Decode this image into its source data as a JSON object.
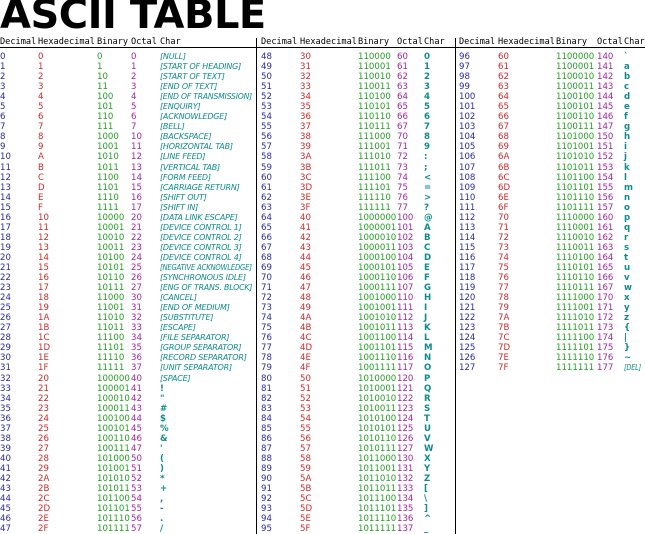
{
  "title": "ASCII TABLE",
  "headers": [
    "Decimal",
    "Hexadecimal",
    "Binary",
    "Octal",
    "Char"
  ],
  "colors": {
    "decimal": "#2b2ba3",
    "hexadecimal": "#cc2a2a",
    "binary": "#24a024",
    "octal": "#a126a1",
    "char": "#0e8c8c"
  },
  "rows": [
    [
      "0",
      "0",
      "0",
      "0",
      "[NULL]"
    ],
    [
      "1",
      "1",
      "1",
      "1",
      "[START OF HEADING]"
    ],
    [
      "2",
      "2",
      "10",
      "2",
      "[START OF TEXT]"
    ],
    [
      "3",
      "3",
      "11",
      "3",
      "[END OF TEXT]"
    ],
    [
      "4",
      "4",
      "100",
      "4",
      "[END OF TRANSMISSION]"
    ],
    [
      "5",
      "5",
      "101",
      "5",
      "[ENQUIRY]"
    ],
    [
      "6",
      "6",
      "110",
      "6",
      "[ACKNOWLEDGE]"
    ],
    [
      "7",
      "7",
      "111",
      "7",
      "[BELL]"
    ],
    [
      "8",
      "8",
      "1000",
      "10",
      "[BACKSPACE]"
    ],
    [
      "9",
      "9",
      "1001",
      "11",
      "[HORIZONTAL TAB]"
    ],
    [
      "10",
      "A",
      "1010",
      "12",
      "[LINE FEED]"
    ],
    [
      "11",
      "B",
      "1011",
      "13",
      "[VERTICAL TAB]"
    ],
    [
      "12",
      "C",
      "1100",
      "14",
      "[FORM FEED]"
    ],
    [
      "13",
      "D",
      "1101",
      "15",
      "[CARRIAGE RETURN]"
    ],
    [
      "14",
      "E",
      "1110",
      "16",
      "[SHIFT OUT]"
    ],
    [
      "15",
      "F",
      "1111",
      "17",
      "[SHIFT IN]"
    ],
    [
      "16",
      "10",
      "10000",
      "20",
      "[DATA LINK ESCAPE]"
    ],
    [
      "17",
      "11",
      "10001",
      "21",
      "[DEVICE CONTROL 1]"
    ],
    [
      "18",
      "12",
      "10010",
      "22",
      "[DEVICE CONTROL 2]"
    ],
    [
      "19",
      "13",
      "10011",
      "23",
      "[DEVICE CONTROL 3]"
    ],
    [
      "20",
      "14",
      "10100",
      "24",
      "[DEVICE CONTROL 4]"
    ],
    [
      "21",
      "15",
      "10101",
      "25",
      "[NEGATIVE ACKNOWLEDGE]"
    ],
    [
      "22",
      "16",
      "10110",
      "26",
      "[SYNCHRONOUS IDLE]"
    ],
    [
      "23",
      "17",
      "10111",
      "27",
      "[ENG OF TRANS. BLOCK]"
    ],
    [
      "24",
      "18",
      "11000",
      "30",
      "[CANCEL]"
    ],
    [
      "25",
      "19",
      "11001",
      "31",
      "[END OF MEDIUM]"
    ],
    [
      "26",
      "1A",
      "11010",
      "32",
      "[SUBSTITUTE]"
    ],
    [
      "27",
      "1B",
      "11011",
      "33",
      "[ESCAPE]"
    ],
    [
      "28",
      "1C",
      "11100",
      "34",
      "[FILE SEPARATOR]"
    ],
    [
      "29",
      "1D",
      "11101",
      "35",
      "[GROUP SEPARATOR]"
    ],
    [
      "30",
      "1E",
      "11110",
      "36",
      "[RECORD SEPARATOR]"
    ],
    [
      "31",
      "1F",
      "11111",
      "37",
      "[UNIT SEPARATOR]"
    ],
    [
      "32",
      "20",
      "100000",
      "40",
      "[SPACE]"
    ],
    [
      "33",
      "21",
      "100001",
      "41",
      "!"
    ],
    [
      "34",
      "22",
      "100010",
      "42",
      "\""
    ],
    [
      "35",
      "23",
      "100011",
      "43",
      "#"
    ],
    [
      "36",
      "24",
      "100100",
      "44",
      "$"
    ],
    [
      "37",
      "25",
      "100101",
      "45",
      "%"
    ],
    [
      "38",
      "26",
      "100110",
      "46",
      "&"
    ],
    [
      "39",
      "27",
      "100111",
      "47",
      "'"
    ],
    [
      "40",
      "28",
      "101000",
      "50",
      "("
    ],
    [
      "41",
      "29",
      "101001",
      "51",
      ")"
    ],
    [
      "42",
      "2A",
      "101010",
      "52",
      "*"
    ],
    [
      "43",
      "2B",
      "101011",
      "53",
      "+"
    ],
    [
      "44",
      "2C",
      "101100",
      "54",
      ","
    ],
    [
      "45",
      "2D",
      "101101",
      "55",
      "-"
    ],
    [
      "46",
      "2E",
      "101110",
      "56",
      "."
    ],
    [
      "47",
      "2F",
      "101111",
      "57",
      "/"
    ],
    [
      "48",
      "30",
      "110000",
      "60",
      "0"
    ],
    [
      "49",
      "31",
      "110001",
      "61",
      "1"
    ],
    [
      "50",
      "32",
      "110010",
      "62",
      "2"
    ],
    [
      "51",
      "33",
      "110011",
      "63",
      "3"
    ],
    [
      "52",
      "34",
      "110100",
      "64",
      "4"
    ],
    [
      "53",
      "35",
      "110101",
      "65",
      "5"
    ],
    [
      "54",
      "36",
      "110110",
      "66",
      "6"
    ],
    [
      "55",
      "37",
      "110111",
      "67",
      "7"
    ],
    [
      "56",
      "38",
      "111000",
      "70",
      "8"
    ],
    [
      "57",
      "39",
      "111001",
      "71",
      "9"
    ],
    [
      "58",
      "3A",
      "111010",
      "72",
      ":"
    ],
    [
      "59",
      "3B",
      "111011",
      "73",
      ";"
    ],
    [
      "60",
      "3C",
      "111100",
      "74",
      "<"
    ],
    [
      "61",
      "3D",
      "111101",
      "75",
      "="
    ],
    [
      "62",
      "3E",
      "111110",
      "76",
      ">"
    ],
    [
      "63",
      "3F",
      "111111",
      "77",
      "?"
    ],
    [
      "64",
      "40",
      "1000000",
      "100",
      "@"
    ],
    [
      "65",
      "41",
      "1000001",
      "101",
      "A"
    ],
    [
      "66",
      "42",
      "1000010",
      "102",
      "B"
    ],
    [
      "67",
      "43",
      "1000011",
      "103",
      "C"
    ],
    [
      "68",
      "44",
      "1000100",
      "104",
      "D"
    ],
    [
      "69",
      "45",
      "1000101",
      "105",
      "E"
    ],
    [
      "70",
      "46",
      "1000110",
      "106",
      "F"
    ],
    [
      "71",
      "47",
      "1000111",
      "107",
      "G"
    ],
    [
      "72",
      "48",
      "1001000",
      "110",
      "H"
    ],
    [
      "73",
      "49",
      "1001001",
      "111",
      "I"
    ],
    [
      "74",
      "4A",
      "1001010",
      "112",
      "J"
    ],
    [
      "75",
      "4B",
      "1001011",
      "113",
      "K"
    ],
    [
      "76",
      "4C",
      "1001100",
      "114",
      "L"
    ],
    [
      "77",
      "4D",
      "1001101",
      "115",
      "M"
    ],
    [
      "78",
      "4E",
      "1001110",
      "116",
      "N"
    ],
    [
      "79",
      "4F",
      "1001111",
      "117",
      "O"
    ],
    [
      "80",
      "50",
      "1010000",
      "120",
      "P"
    ],
    [
      "81",
      "51",
      "1010001",
      "121",
      "Q"
    ],
    [
      "82",
      "52",
      "1010010",
      "122",
      "R"
    ],
    [
      "83",
      "53",
      "1010011",
      "123",
      "S"
    ],
    [
      "84",
      "54",
      "1010100",
      "124",
      "T"
    ],
    [
      "85",
      "55",
      "1010101",
      "125",
      "U"
    ],
    [
      "86",
      "56",
      "1010110",
      "126",
      "V"
    ],
    [
      "87",
      "57",
      "1010111",
      "127",
      "W"
    ],
    [
      "88",
      "58",
      "1011000",
      "130",
      "X"
    ],
    [
      "89",
      "59",
      "1011001",
      "131",
      "Y"
    ],
    [
      "90",
      "5A",
      "1011010",
      "132",
      "Z"
    ],
    [
      "91",
      "5B",
      "1011011",
      "133",
      "["
    ],
    [
      "92",
      "5C",
      "1011100",
      "134",
      "\\"
    ],
    [
      "93",
      "5D",
      "1011101",
      "135",
      "]"
    ],
    [
      "94",
      "5E",
      "1011110",
      "136",
      "^"
    ],
    [
      "95",
      "5F",
      "1011111",
      "137",
      "_"
    ],
    [
      "96",
      "60",
      "1100000",
      "140",
      "`"
    ],
    [
      "97",
      "61",
      "1100001",
      "141",
      "a"
    ],
    [
      "98",
      "62",
      "1100010",
      "142",
      "b"
    ],
    [
      "99",
      "63",
      "1100011",
      "143",
      "c"
    ],
    [
      "100",
      "64",
      "1100100",
      "144",
      "d"
    ],
    [
      "101",
      "65",
      "1100101",
      "145",
      "e"
    ],
    [
      "102",
      "66",
      "1100110",
      "146",
      "f"
    ],
    [
      "103",
      "67",
      "1100111",
      "147",
      "g"
    ],
    [
      "104",
      "68",
      "1101000",
      "150",
      "h"
    ],
    [
      "105",
      "69",
      "1101001",
      "151",
      "i"
    ],
    [
      "106",
      "6A",
      "1101010",
      "152",
      "j"
    ],
    [
      "107",
      "6B",
      "1101011",
      "153",
      "k"
    ],
    [
      "108",
      "6C",
      "1101100",
      "154",
      "l"
    ],
    [
      "109",
      "6D",
      "1101101",
      "155",
      "m"
    ],
    [
      "110",
      "6E",
      "1101110",
      "156",
      "n"
    ],
    [
      "111",
      "6F",
      "1101111",
      "157",
      "o"
    ],
    [
      "112",
      "70",
      "1110000",
      "160",
      "p"
    ],
    [
      "113",
      "71",
      "1110001",
      "161",
      "q"
    ],
    [
      "114",
      "72",
      "1110010",
      "162",
      "r"
    ],
    [
      "115",
      "73",
      "1110011",
      "163",
      "s"
    ],
    [
      "116",
      "74",
      "1110100",
      "164",
      "t"
    ],
    [
      "117",
      "75",
      "1110101",
      "165",
      "u"
    ],
    [
      "118",
      "76",
      "1110110",
      "166",
      "v"
    ],
    [
      "119",
      "77",
      "1110111",
      "167",
      "w"
    ],
    [
      "120",
      "78",
      "1111000",
      "170",
      "x"
    ],
    [
      "121",
      "79",
      "1111001",
      "171",
      "y"
    ],
    [
      "122",
      "7A",
      "1111010",
      "172",
      "z"
    ],
    [
      "123",
      "7B",
      "1111011",
      "173",
      "{"
    ],
    [
      "124",
      "7C",
      "1111100",
      "174",
      "|"
    ],
    [
      "125",
      "7D",
      "1111101",
      "175",
      "}"
    ],
    [
      "126",
      "7E",
      "1111110",
      "176",
      "~"
    ],
    [
      "127",
      "7F",
      "1111111",
      "177",
      "[DEL]"
    ]
  ]
}
